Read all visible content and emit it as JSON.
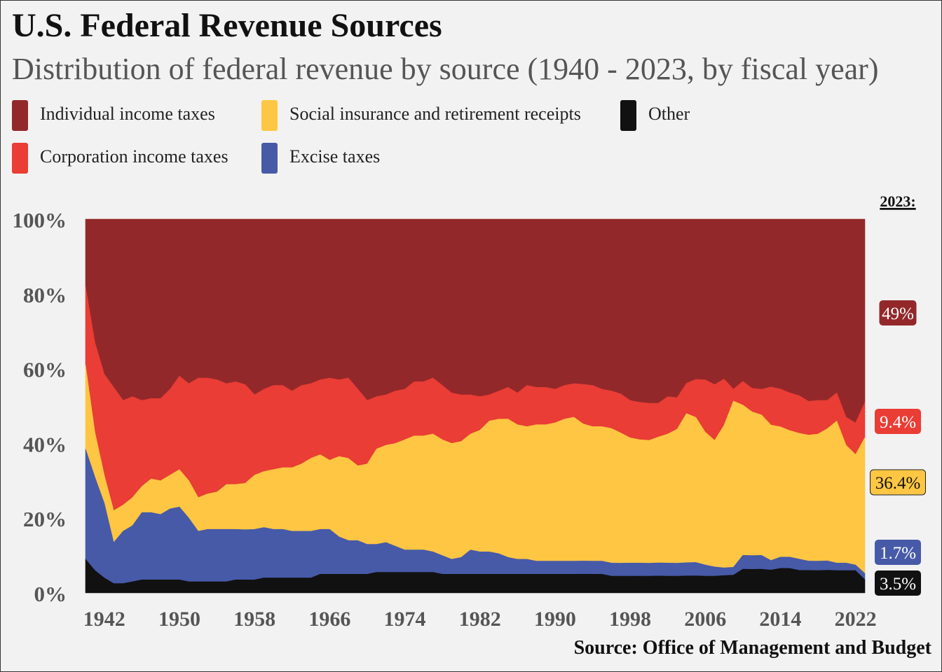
{
  "header": {
    "title": "U.S. Federal Revenue Sources",
    "subtitle": "Distribution of federal revenue by source (1940 - 2023, by fiscal year)"
  },
  "legend": [
    {
      "label": "Individual income taxes",
      "color": "#93282a"
    },
    {
      "label": "Social insurance and retirement receipts",
      "color": "#fec643"
    },
    {
      "label": "Other",
      "color": "#111111"
    },
    {
      "label": "Corporation income taxes",
      "color": "#e93d35"
    },
    {
      "label": "Excise taxes",
      "color": "#475aa8"
    }
  ],
  "source": "Source: Office of Management and Budget",
  "chart_data": {
    "type": "area",
    "stacked": true,
    "normalized_percent": true,
    "x": [
      1940,
      1941,
      1942,
      1943,
      1944,
      1945,
      1946,
      1947,
      1948,
      1949,
      1950,
      1951,
      1952,
      1953,
      1954,
      1955,
      1956,
      1957,
      1958,
      1959,
      1960,
      1961,
      1962,
      1963,
      1964,
      1965,
      1966,
      1967,
      1968,
      1969,
      1970,
      1971,
      1972,
      1973,
      1974,
      1975,
      1976,
      1977,
      1978,
      1979,
      1980,
      1981,
      1982,
      1983,
      1984,
      1985,
      1986,
      1987,
      1988,
      1989,
      1990,
      1991,
      1992,
      1993,
      1994,
      1995,
      1996,
      1997,
      1998,
      1999,
      2000,
      2001,
      2002,
      2003,
      2004,
      2005,
      2006,
      2007,
      2008,
      2009,
      2010,
      2011,
      2012,
      2013,
      2014,
      2015,
      2016,
      2017,
      2018,
      2019,
      2020,
      2021,
      2022,
      2023
    ],
    "x_ticks": [
      "1942",
      "1950",
      "1958",
      "1966",
      "1974",
      "1982",
      "1990",
      "1998",
      "2006",
      "2014",
      "2022"
    ],
    "y_ticks": [
      "0%",
      "20%",
      "40%",
      "60%",
      "80%",
      "100%"
    ],
    "ylim": [
      0,
      100
    ],
    "series": [
      {
        "name": "Other",
        "color": "#111111",
        "values": [
          9,
          6,
          4,
          2.5,
          2.5,
          3,
          3.5,
          3.5,
          3.5,
          3.5,
          3.5,
          3,
          3,
          3,
          3,
          3,
          3.5,
          3.5,
          3.5,
          4,
          4,
          4,
          4,
          4,
          4,
          5,
          5,
          5,
          5,
          5,
          5,
          5.5,
          5.5,
          5.5,
          5.5,
          5.5,
          5.5,
          5.5,
          5,
          5,
          5,
          5,
          5,
          5,
          5,
          5,
          5,
          5,
          5,
          5,
          5,
          5,
          5,
          5,
          5,
          5,
          4.5,
          4.5,
          4.5,
          4.5,
          4.5,
          4.5,
          4.5,
          4.5,
          4.5,
          4.5,
          4.5,
          4.5,
          4.5,
          4.5,
          6,
          6,
          6,
          6,
          6.5,
          6.5,
          6,
          6,
          6,
          6,
          6,
          6,
          6,
          3.5
        ]
      },
      {
        "name": "Excise taxes",
        "color": "#475aa8",
        "values": [
          29.5,
          25,
          20,
          11,
          14,
          15,
          18,
          18,
          17.5,
          19,
          19.5,
          17,
          13.5,
          14,
          14,
          14,
          13.5,
          13.5,
          13.5,
          13.5,
          13,
          13,
          12.5,
          12.5,
          12.5,
          12,
          12,
          10,
          9,
          9,
          8,
          7.5,
          8,
          7,
          6,
          6,
          6,
          5.5,
          5,
          4,
          4.5,
          6.5,
          6,
          6,
          5.5,
          4.5,
          4,
          4,
          3.5,
          3.5,
          3.5,
          3.5,
          3.5,
          3.5,
          3.5,
          3.5,
          3.5,
          3.5,
          3.5,
          3.5,
          3.5,
          3.5,
          3.5,
          3.5,
          3.5,
          3.5,
          3,
          2.5,
          2,
          2,
          3.5,
          3.5,
          3.5,
          2.5,
          3,
          3,
          3,
          2.5,
          2.5,
          2.5,
          2,
          2,
          1.5,
          1.7
        ]
      },
      {
        "name": "Social insurance and retirement receipts",
        "color": "#fec643",
        "values": [
          22.5,
          12,
          7.5,
          8.5,
          7,
          7.5,
          7,
          9,
          9,
          9,
          10,
          10,
          9,
          9.5,
          10,
          12,
          12,
          12.5,
          14.5,
          15,
          16,
          16.5,
          17,
          18,
          19.5,
          20,
          18.5,
          21.5,
          22,
          20,
          21.5,
          25.5,
          26,
          27.5,
          29.5,
          30.5,
          30.5,
          31.5,
          31,
          31,
          31,
          31,
          32.5,
          35,
          36,
          37,
          36,
          35.5,
          36.5,
          36.5,
          37,
          38,
          38.5,
          36.5,
          36,
          36,
          36,
          35,
          33.5,
          33,
          33,
          33.5,
          34.5,
          36,
          39.5,
          38,
          35.5,
          34,
          37,
          42,
          38,
          36.5,
          35.5,
          35.5,
          34.5,
          33.5,
          33.5,
          33.5,
          34,
          35,
          38,
          31.5,
          29.5,
          36.4
        ]
      },
      {
        "name": "Corporation income taxes",
        "color": "#e93d35",
        "values": [
          21,
          24,
          27,
          33,
          28,
          27,
          23,
          21.5,
          22,
          23,
          25,
          26,
          32,
          31,
          30,
          27,
          27.5,
          26.5,
          21.5,
          22,
          22.5,
          22,
          20.5,
          21,
          20,
          20,
          22,
          20.5,
          21.5,
          20.5,
          17,
          14,
          13.5,
          14,
          13.5,
          14.5,
          14.5,
          15,
          14.5,
          13.5,
          12.5,
          10.5,
          9,
          7,
          7.5,
          8.5,
          8.5,
          11,
          10,
          10,
          9,
          9,
          9,
          10.5,
          11,
          10,
          10,
          10.5,
          10,
          10,
          10,
          9,
          10,
          8.5,
          8,
          10,
          14,
          15,
          12,
          3,
          6,
          6,
          6.5,
          10,
          10,
          10,
          10,
          9,
          9,
          7.5,
          7.5,
          7.5,
          8.5,
          9.4
        ]
      },
      {
        "name": "Individual income taxes",
        "color": "#93282a",
        "values": [
          18,
          33,
          41.5,
          45,
          48.5,
          47.5,
          48.5,
          48,
          48,
          45.5,
          42,
          44,
          42.5,
          42.5,
          43,
          44,
          43.5,
          44.5,
          47,
          45.5,
          44.5,
          44.5,
          46,
          44.5,
          44,
          43,
          42.5,
          43,
          42.5,
          45.5,
          48.5,
          47.5,
          47,
          46,
          45.5,
          43.5,
          43.5,
          42.5,
          44.5,
          46.5,
          47,
          47,
          47.5,
          47,
          46,
          45,
          46.5,
          44.5,
          45,
          45,
          45.5,
          44.5,
          44,
          44,
          44.5,
          45.5,
          46,
          47,
          48.5,
          49,
          49.5,
          49,
          47.5,
          48,
          43.5,
          42,
          43,
          44.5,
          41.5,
          43,
          41,
          43,
          43,
          44,
          45,
          46,
          47,
          48.5,
          48.5,
          48,
          46.5,
          53,
          54.5,
          49
        ]
      }
    ],
    "end_label_year": "2023:",
    "end_labels": [
      {
        "series": "Individual income taxes",
        "text": "49%",
        "bg": "#93282a",
        "fg": "#ffffff"
      },
      {
        "series": "Corporation income taxes",
        "text": "9.4%",
        "bg": "#e93d35",
        "fg": "#ffffff"
      },
      {
        "series": "Social insurance and retirement receipts",
        "text": "36.4%",
        "bg": "#fec643",
        "fg": "#111111"
      },
      {
        "series": "Excise taxes",
        "text": "1.7%",
        "bg": "#475aa8",
        "fg": "#ffffff"
      },
      {
        "series": "Other",
        "text": "3.5%",
        "bg": "#111111",
        "fg": "#ffffff"
      }
    ]
  }
}
